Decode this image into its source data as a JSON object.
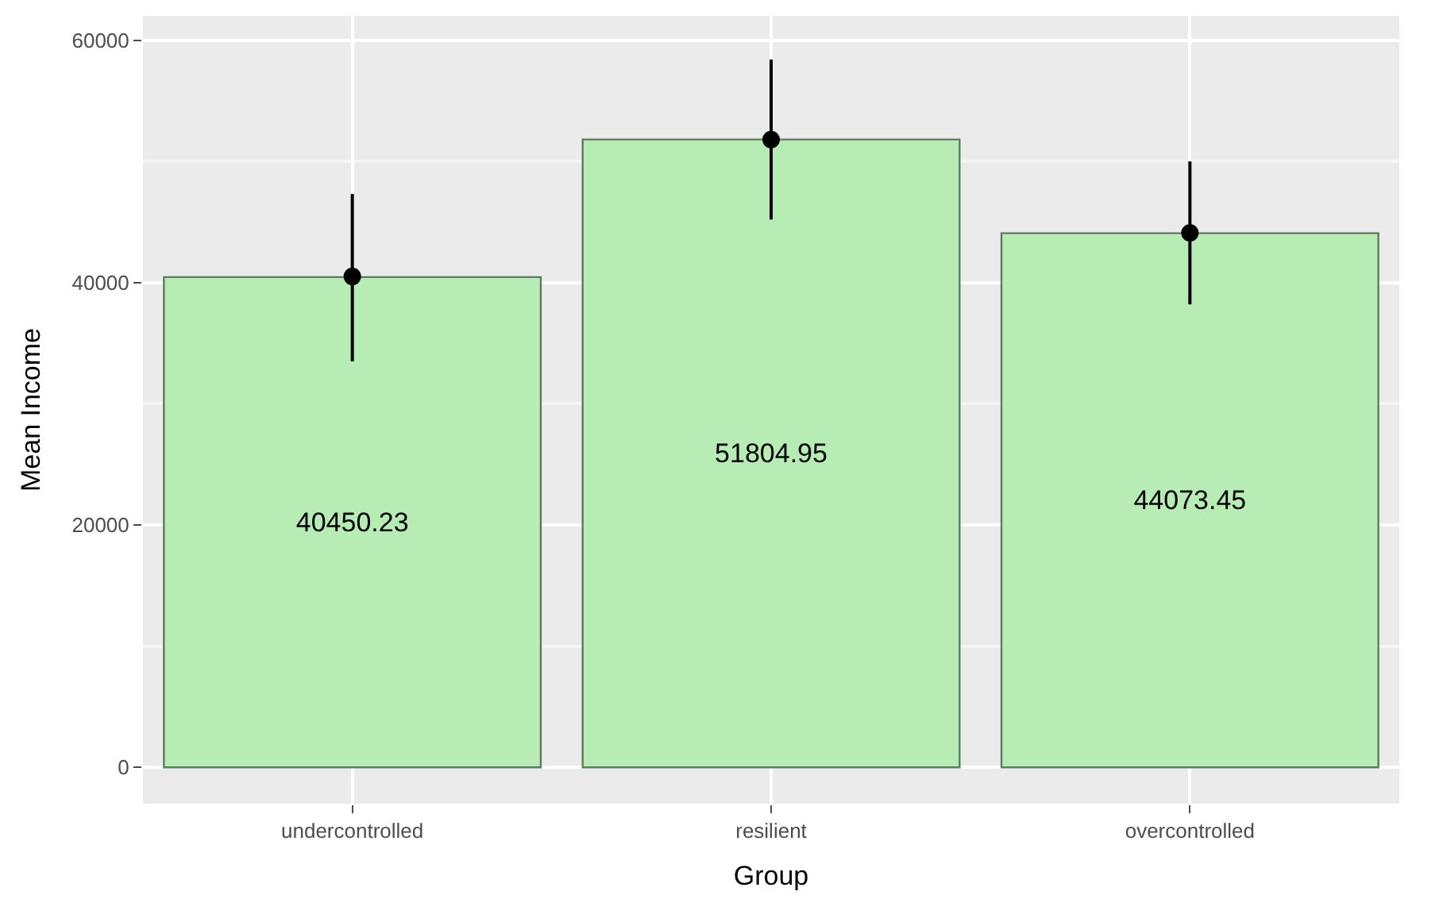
{
  "chart_data": {
    "type": "bar",
    "xlabel": "Group",
    "ylabel": "Mean Income",
    "categories": [
      "undercontrolled",
      "resilient",
      "overcontrolled"
    ],
    "series": [
      {
        "color": "#b8ecb5",
        "values": [
          40450.23,
          51804.95,
          44073.45
        ],
        "value_labels": [
          "40450.23",
          "51804.95",
          "44073.45"
        ]
      },
      {
        "type": "scatter",
        "color": "#000000",
        "x": [
          "undercontrolled",
          "resilient",
          "overcontrolled"
        ],
        "values": [
          40500,
          51800,
          44100
        ],
        "errors": [
          [
            33500,
            47300
          ],
          [
            45200,
            58400
          ],
          [
            38200,
            50000
          ]
        ]
      }
    ],
    "marker": "circle",
    "ylim": [
      -3000,
      62000
    ],
    "yticks": [
      0,
      20000,
      40000,
      60000
    ],
    "grid": true
  }
}
